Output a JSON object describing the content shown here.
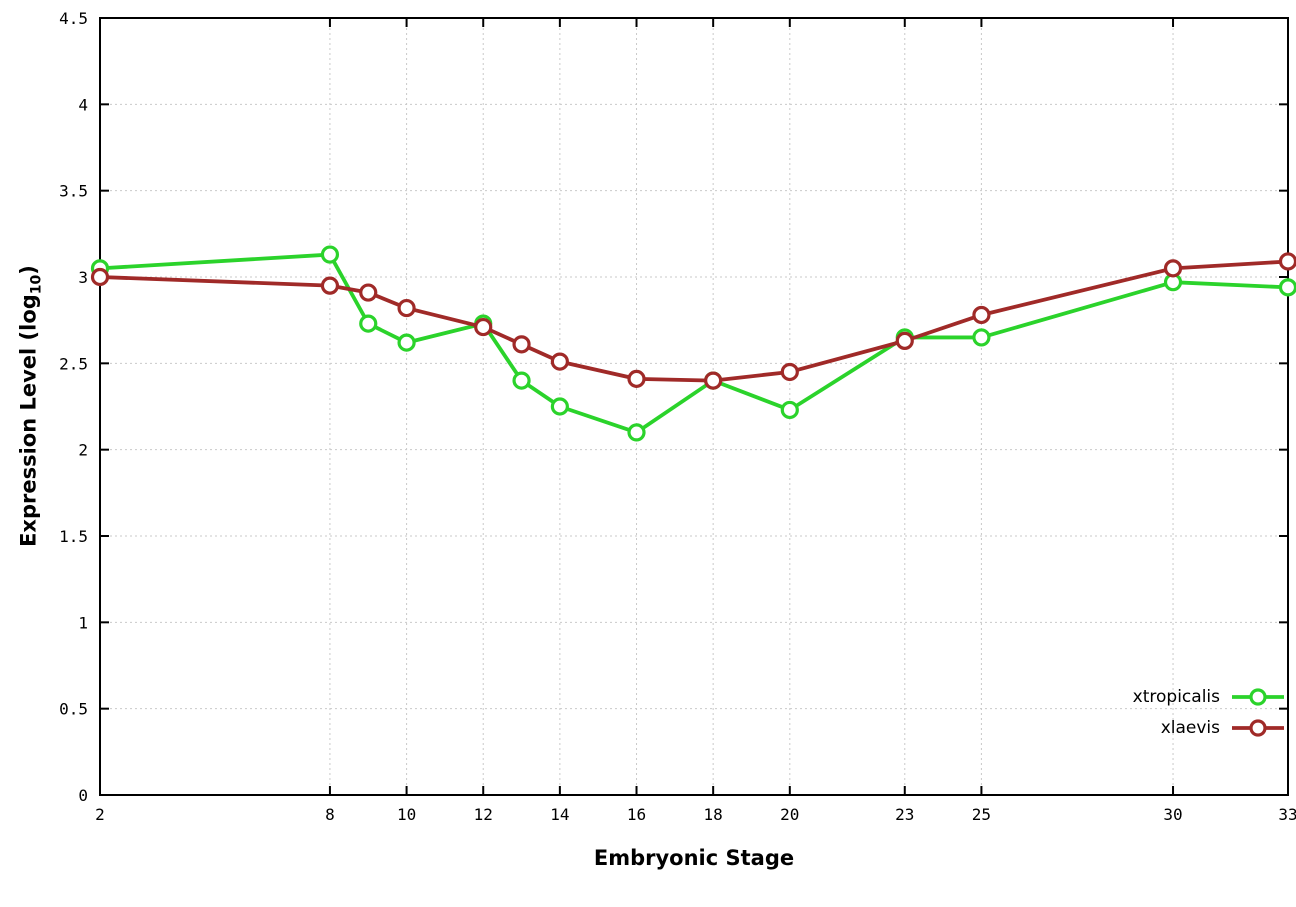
{
  "chart_data": {
    "type": "line",
    "title": "",
    "xlabel": "Embryonic Stage",
    "ylabel_prefix": "Expression Level (log",
    "ylabel_sub": "10",
    "ylabel_suffix": ")",
    "xlim": [
      2,
      33
    ],
    "ylim": [
      0,
      4.5
    ],
    "x_ticks": [
      2,
      8,
      10,
      12,
      14,
      16,
      18,
      20,
      23,
      25,
      30,
      33
    ],
    "y_ticks": [
      0,
      0.5,
      1,
      1.5,
      2,
      2.5,
      3,
      3.5,
      4,
      4.5
    ],
    "grid": true,
    "legend_position": "bottom-right",
    "x": [
      2,
      8,
      9,
      10,
      12,
      13,
      14,
      16,
      18,
      20,
      23,
      25,
      30,
      33
    ],
    "series": [
      {
        "name": "xtropicalis",
        "color": "#2bd32b",
        "values": [
          3.05,
          3.13,
          2.73,
          2.62,
          2.73,
          2.4,
          2.25,
          2.1,
          2.4,
          2.23,
          2.65,
          2.65,
          2.97,
          2.94
        ]
      },
      {
        "name": "xlaevis",
        "color": "#a02a28",
        "values": [
          3.0,
          2.95,
          2.91,
          2.82,
          2.71,
          2.61,
          2.51,
          2.41,
          2.4,
          2.45,
          2.63,
          2.78,
          3.05,
          3.09
        ]
      }
    ],
    "plot_colors": {
      "background": "#ffffff",
      "border": "#000000",
      "grid": "#c9c9c9",
      "marker_fill": "#ffffff"
    }
  }
}
